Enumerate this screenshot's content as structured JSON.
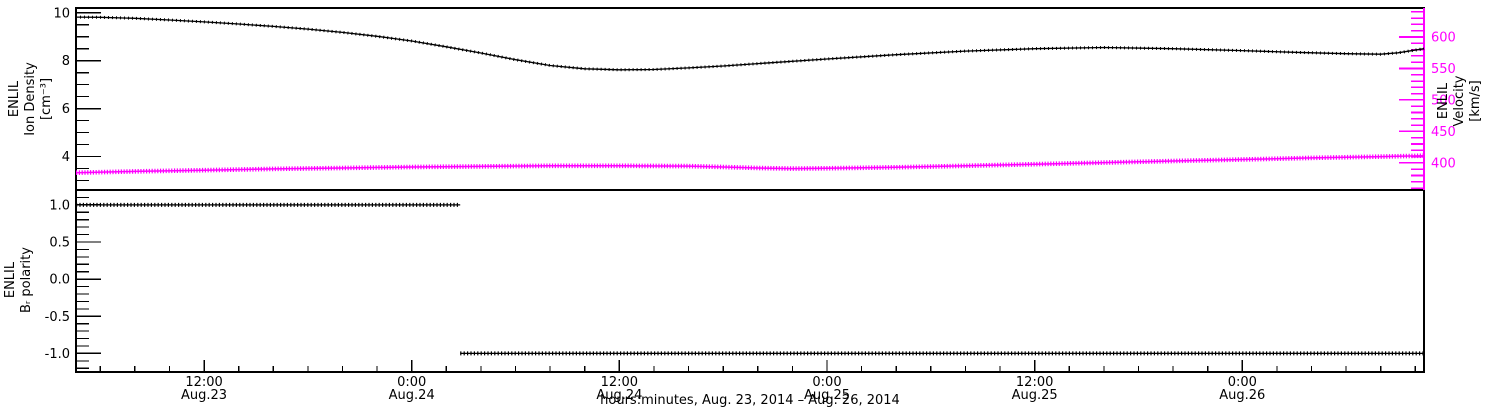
{
  "figure": {
    "background": "#ffffff",
    "axis_color": "#000000",
    "accent_color": "#ff00ff"
  },
  "x_axis": {
    "title": "hours:minutes, Aug. 23, 2014 – Aug. 26, 2014",
    "xlim": [
      4.6,
      82.5
    ],
    "minor_step_hours": 2,
    "major_ticks": [
      {
        "t": 12,
        "time": "12:00",
        "date": "Aug.23"
      },
      {
        "t": 24,
        "time": "0:00",
        "date": "Aug.24"
      },
      {
        "t": 36,
        "time": "12:00",
        "date": "Aug.24"
      },
      {
        "t": 48,
        "time": "0:00",
        "date": "Aug.25"
      },
      {
        "t": 60,
        "time": "12:00",
        "date": "Aug.25"
      },
      {
        "t": 72,
        "time": "0:00",
        "date": "Aug.26"
      }
    ]
  },
  "chart_data": [
    {
      "id": "density_velocity_panel",
      "type": "line",
      "xlim": [
        4.6,
        82.5
      ],
      "grid": false,
      "axes": {
        "left": {
          "title_lines": [
            "ENLIL",
            "Ion Density",
            "[cm⁻³]"
          ],
          "ylim": [
            2.6,
            10.2
          ],
          "major_ticks": [
            {
              "v": 10,
              "label": "10"
            },
            {
              "v": 8,
              "label": "8"
            },
            {
              "v": 6,
              "label": "6"
            },
            {
              "v": 4,
              "label": "4"
            }
          ],
          "minor_from": 3,
          "minor_to": 10,
          "minor_step": 0.5,
          "color": "#000000"
        },
        "right": {
          "title_lines": [
            "ENLIL",
            "Velocity",
            "[km/s]"
          ],
          "ylim": [
            357,
            646
          ],
          "major_ticks": [
            {
              "v": 600,
              "label": "600"
            },
            {
              "v": 550,
              "label": "550"
            },
            {
              "v": 500,
              "label": "500"
            },
            {
              "v": 450,
              "label": "450"
            },
            {
              "v": 400,
              "label": "400"
            }
          ],
          "minor_from": 360,
          "minor_to": 640,
          "minor_step": 10,
          "color": "#ff00ff",
          "title_color": "#000000"
        }
      },
      "series": [
        {
          "name": "ion_density",
          "axis": "left",
          "color": "#000000",
          "x": [
            4.6,
            6,
            8,
            10,
            12,
            14,
            16,
            18,
            20,
            22,
            24,
            26,
            28,
            30,
            32,
            34,
            36,
            38,
            40,
            42,
            44,
            48,
            52,
            56,
            60,
            64,
            68,
            72,
            75,
            78,
            80,
            81,
            82.5
          ],
          "y": [
            9.82,
            9.81,
            9.77,
            9.7,
            9.62,
            9.53,
            9.43,
            9.32,
            9.18,
            9.02,
            8.82,
            8.58,
            8.32,
            8.04,
            7.8,
            7.66,
            7.62,
            7.63,
            7.7,
            7.78,
            7.88,
            8.07,
            8.25,
            8.4,
            8.5,
            8.55,
            8.5,
            8.42,
            8.35,
            8.29,
            8.27,
            8.33,
            8.5
          ]
        },
        {
          "name": "velocity",
          "axis": "right",
          "color": "#ff00ff",
          "x": [
            4.6,
            8,
            12,
            16,
            20,
            24,
            28,
            32,
            36,
            40,
            42,
            44,
            46,
            48,
            52,
            56,
            60,
            64,
            68,
            72,
            76,
            80,
            82.5
          ],
          "y": [
            384.5,
            386.5,
            388.5,
            390.5,
            392,
            393.5,
            394.5,
            395.5,
            395.5,
            395,
            393.5,
            392,
            391,
            391.5,
            393,
            395.5,
            398,
            400.5,
            403,
            405.5,
            408,
            410,
            411.5
          ]
        }
      ]
    },
    {
      "id": "polarity_panel",
      "type": "line",
      "xlim": [
        4.6,
        82.5
      ],
      "grid": false,
      "axes": {
        "left": {
          "title_lines": [
            "ENLIL",
            "Bᵣ polarity"
          ],
          "ylim": [
            -1.25,
            1.2
          ],
          "major_ticks": [
            {
              "v": 1.0,
              "label": "1.0"
            },
            {
              "v": 0.5,
              "label": "0.5"
            },
            {
              "v": 0.0,
              "label": "0.0"
            },
            {
              "v": -0.5,
              "label": "-0.5"
            },
            {
              "v": -1.0,
              "label": "-1.0"
            }
          ],
          "minor_from": -1.2,
          "minor_to": 1.2,
          "minor_step": 0.1,
          "color": "#000000"
        }
      },
      "series": [
        {
          "name": "br_polarity_positive",
          "axis": "left",
          "color": "#000000",
          "x": [
            4.6,
            26.8
          ],
          "y": [
            1,
            1
          ]
        },
        {
          "name": "br_polarity_negative",
          "axis": "left",
          "color": "#000000",
          "x": [
            26.8,
            82.5
          ],
          "y": [
            -1,
            -1
          ]
        }
      ]
    }
  ]
}
